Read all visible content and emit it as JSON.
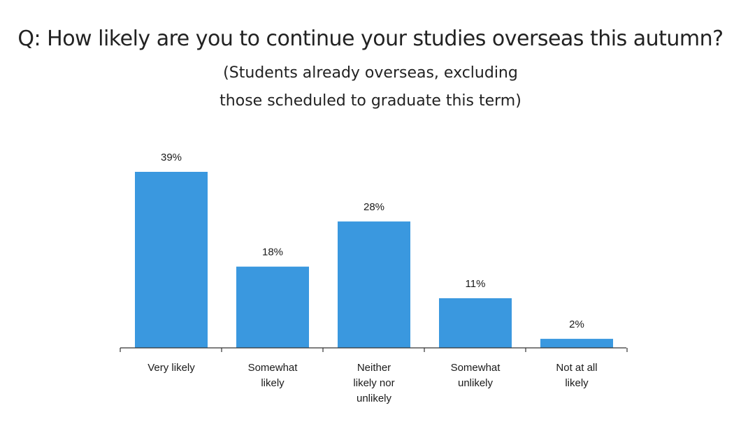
{
  "header": {
    "title": "Q: How likely are you to continue your studies overseas this autumn?",
    "subtitle_line1": "(Students already overseas, excluding",
    "subtitle_line2": "those scheduled to graduate this term)"
  },
  "chart_data": {
    "type": "bar",
    "title": "Q: How likely are you to continue your studies overseas this autumn?",
    "subtitle": "(Students already overseas, excluding those scheduled to graduate this term)",
    "categories": [
      [
        "Very likely"
      ],
      [
        "Somewhat",
        "likely"
      ],
      [
        "Neither",
        "likely nor",
        "unlikely"
      ],
      [
        "Somewhat",
        "unlikely"
      ],
      [
        "Not at all",
        "likely"
      ]
    ],
    "values": [
      39,
      18,
      28,
      11,
      2
    ],
    "data_labels": [
      "39%",
      "18%",
      "28%",
      "11%",
      "2%"
    ],
    "ylim": [
      0,
      40
    ],
    "xlabel": "",
    "ylabel": "",
    "grid": false,
    "legend": "none",
    "bar_color": "#3a98df",
    "axis_color": "#333333"
  }
}
